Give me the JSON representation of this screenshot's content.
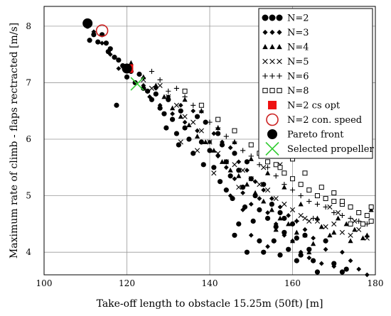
{
  "chart_data": {
    "type": "scatter",
    "xlabel": "Take-off  length to obstacle 15.25m (50ft)    [m]",
    "ylabel": "Maximum rate of climb - flaps rectracted     [m/s]",
    "xlim": [
      100,
      180
    ],
    "ylim": [
      3.6,
      8.35
    ],
    "xticks": [
      100,
      120,
      140,
      160,
      180
    ],
    "yticks": [
      4,
      5,
      6,
      7,
      8
    ],
    "grid": true,
    "legend_position": "top-right",
    "series": [
      {
        "name": "N=2",
        "marker": "circle",
        "color": "#000000",
        "points": [
          [
            110.5,
            8.0
          ],
          [
            111,
            7.75
          ],
          [
            112,
            7.85
          ],
          [
            113,
            7.72
          ],
          [
            114,
            7.85
          ],
          [
            115,
            7.7
          ],
          [
            115.5,
            7.55
          ],
          [
            116,
            7.6
          ],
          [
            117,
            7.45
          ],
          [
            118,
            7.4
          ],
          [
            117.5,
            6.6
          ],
          [
            119,
            7.3
          ],
          [
            120,
            7.1
          ],
          [
            121,
            7.2
          ],
          [
            122,
            7.0
          ],
          [
            123,
            7.15
          ],
          [
            124,
            6.9
          ],
          [
            125,
            6.85
          ],
          [
            126,
            6.7
          ],
          [
            127,
            6.8
          ],
          [
            128,
            6.55
          ],
          [
            129,
            6.45
          ],
          [
            129.5,
            6.2
          ],
          [
            130,
            6.7
          ],
          [
            131,
            6.35
          ],
          [
            132,
            6.1
          ],
          [
            132.5,
            5.9
          ],
          [
            133,
            6.5
          ],
          [
            134,
            6.2
          ],
          [
            135,
            6.0
          ],
          [
            136,
            5.75
          ],
          [
            137,
            6.4
          ],
          [
            138,
            5.95
          ],
          [
            138.5,
            5.55
          ],
          [
            139,
            6.3
          ],
          [
            140,
            5.8
          ],
          [
            141,
            5.5
          ],
          [
            142,
            6.1
          ],
          [
            142.5,
            5.25
          ],
          [
            143,
            5.9
          ],
          [
            144,
            5.6
          ],
          [
            145,
            5.35
          ],
          [
            145.5,
            4.95
          ],
          [
            146,
            5.75
          ],
          [
            147,
            5.45
          ],
          [
            148,
            5.15
          ],
          [
            148.5,
            4.8
          ],
          [
            149,
            5.6
          ],
          [
            150,
            5.3
          ],
          [
            150.5,
            4.55
          ],
          [
            151,
            5.0
          ],
          [
            152,
            4.75
          ],
          [
            153,
            5.2
          ],
          [
            154,
            4.6
          ],
          [
            155,
            4.85
          ],
          [
            155.5,
            4.2
          ],
          [
            156,
            4.45
          ],
          [
            157,
            4.7
          ],
          [
            158,
            4.35
          ],
          [
            159,
            4.05
          ],
          [
            160,
            4.5
          ],
          [
            161,
            4.25
          ],
          [
            162,
            3.95
          ],
          [
            163,
            4.3
          ],
          [
            164,
            4.05
          ],
          [
            165,
            3.85
          ],
          [
            166,
            3.65
          ],
          [
            168,
            4.2
          ],
          [
            170,
            3.8
          ],
          [
            172,
            3.65
          ],
          [
            173,
            3.7
          ],
          [
            146,
            4.3
          ],
          [
            147,
            4.5
          ],
          [
            149,
            4.0
          ],
          [
            144,
            5.1
          ],
          [
            152,
            4.2
          ],
          [
            158,
            4.6
          ],
          [
            161,
            3.85
          ],
          [
            157,
            3.95
          ],
          [
            153,
            4.0
          ]
        ]
      },
      {
        "name": "N=3",
        "marker": "diamond",
        "color": "#000000",
        "points": [
          [
            112,
            7.9
          ],
          [
            114,
            7.7
          ],
          [
            116,
            7.5
          ],
          [
            118,
            7.25
          ],
          [
            120,
            7.3
          ],
          [
            122,
            7.0
          ],
          [
            124,
            6.95
          ],
          [
            125.5,
            6.75
          ],
          [
            127,
            6.9
          ],
          [
            128,
            6.6
          ],
          [
            130,
            6.75
          ],
          [
            131,
            6.45
          ],
          [
            133,
            6.6
          ],
          [
            134,
            6.3
          ],
          [
            136,
            6.5
          ],
          [
            137,
            6.15
          ],
          [
            139,
            6.3
          ],
          [
            140,
            5.95
          ],
          [
            141,
            6.1
          ],
          [
            142,
            5.7
          ],
          [
            143,
            5.95
          ],
          [
            144,
            5.5
          ],
          [
            145,
            5.85
          ],
          [
            146,
            5.3
          ],
          [
            147,
            5.6
          ],
          [
            148,
            5.05
          ],
          [
            149,
            5.45
          ],
          [
            150,
            4.85
          ],
          [
            151,
            5.25
          ],
          [
            152,
            4.95
          ],
          [
            153,
            5.1
          ],
          [
            154,
            4.7
          ],
          [
            155,
            4.95
          ],
          [
            156,
            4.5
          ],
          [
            157,
            4.8
          ],
          [
            158,
            4.3
          ],
          [
            159,
            4.65
          ],
          [
            160,
            4.2
          ],
          [
            161,
            4.55
          ],
          [
            162,
            4.0
          ],
          [
            163,
            4.4
          ],
          [
            164,
            3.9
          ],
          [
            165,
            4.25
          ],
          [
            167,
            3.8
          ],
          [
            168,
            4.05
          ],
          [
            170,
            3.75
          ],
          [
            172,
            4.0
          ],
          [
            174,
            3.85
          ],
          [
            176,
            3.7
          ],
          [
            178,
            3.6
          ],
          [
            150,
            4.3
          ],
          [
            154,
            4.1
          ],
          [
            148,
            4.75
          ],
          [
            145,
            5.0
          ]
        ]
      },
      {
        "name": "N=4",
        "marker": "triangle",
        "color": "#000000",
        "points": [
          [
            121,
            7.35
          ],
          [
            124,
            7.1
          ],
          [
            127,
            6.95
          ],
          [
            129,
            6.75
          ],
          [
            131,
            6.55
          ],
          [
            133,
            6.4
          ],
          [
            135,
            6.25
          ],
          [
            137,
            6.05
          ],
          [
            139,
            5.95
          ],
          [
            141,
            5.8
          ],
          [
            143,
            5.6
          ],
          [
            145,
            5.45
          ],
          [
            147,
            5.35
          ],
          [
            149,
            5.2
          ],
          [
            151,
            5.05
          ],
          [
            153,
            4.9
          ],
          [
            155,
            4.75
          ],
          [
            157,
            4.6
          ],
          [
            159,
            4.5
          ],
          [
            161,
            4.35
          ],
          [
            163,
            4.3
          ],
          [
            165,
            4.15
          ],
          [
            167,
            4.45
          ],
          [
            169,
            4.3
          ],
          [
            171,
            4.6
          ],
          [
            173,
            4.5
          ],
          [
            175,
            4.4
          ],
          [
            177,
            4.25
          ],
          [
            178,
            4.3
          ],
          [
            179,
            4.75
          ],
          [
            134,
            6.7
          ],
          [
            138,
            6.5
          ],
          [
            142,
            6.2
          ],
          [
            146,
            5.95
          ],
          [
            150,
            5.65
          ],
          [
            154,
            5.4
          ],
          [
            158,
            5.15
          ],
          [
            162,
            4.85
          ],
          [
            166,
            4.6
          ],
          [
            170,
            4.35
          ],
          [
            174,
            4.2
          ],
          [
            160,
            4.2
          ],
          [
            164,
            4.0
          ],
          [
            156,
            4.4
          ]
        ]
      },
      {
        "name": "N=5",
        "marker": "x",
        "color": "#000000",
        "points": [
          [
            124,
            7.05
          ],
          [
            126,
            6.9
          ],
          [
            128,
            6.95
          ],
          [
            130,
            6.75
          ],
          [
            132,
            6.6
          ],
          [
            134,
            6.4
          ],
          [
            136,
            6.3
          ],
          [
            138,
            6.15
          ],
          [
            140,
            5.95
          ],
          [
            142,
            5.75
          ],
          [
            144,
            5.6
          ],
          [
            146,
            5.55
          ],
          [
            148,
            5.45
          ],
          [
            150,
            5.3
          ],
          [
            152,
            5.2
          ],
          [
            154,
            5.1
          ],
          [
            156,
            4.95
          ],
          [
            158,
            4.85
          ],
          [
            160,
            4.75
          ],
          [
            162,
            4.65
          ],
          [
            164,
            4.55
          ],
          [
            166,
            4.55
          ],
          [
            168,
            4.45
          ],
          [
            170,
            4.5
          ],
          [
            172,
            4.35
          ],
          [
            174,
            4.3
          ],
          [
            176,
            4.4
          ],
          [
            178,
            4.25
          ],
          [
            133,
            5.95
          ],
          [
            137,
            5.8
          ],
          [
            141,
            5.4
          ],
          [
            147,
            5.15
          ],
          [
            153,
            5.5
          ],
          [
            157,
            5.55
          ],
          [
            163,
            4.6
          ],
          [
            169,
            4.8
          ],
          [
            171,
            4.7
          ],
          [
            175,
            4.55
          ]
        ]
      },
      {
        "name": "N=6",
        "marker": "plus",
        "color": "#000000",
        "points": [
          [
            126,
            7.2
          ],
          [
            128,
            7.05
          ],
          [
            130,
            6.85
          ],
          [
            132,
            6.9
          ],
          [
            134,
            6.75
          ],
          [
            136,
            6.6
          ],
          [
            138,
            6.5
          ],
          [
            140,
            6.3
          ],
          [
            142,
            6.2
          ],
          [
            144,
            6.05
          ],
          [
            146,
            5.95
          ],
          [
            148,
            5.8
          ],
          [
            150,
            5.7
          ],
          [
            152,
            5.55
          ],
          [
            154,
            5.5
          ],
          [
            156,
            5.35
          ],
          [
            158,
            5.2
          ],
          [
            160,
            5.1
          ],
          [
            162,
            5.0
          ],
          [
            164,
            4.9
          ],
          [
            166,
            4.85
          ],
          [
            168,
            4.8
          ],
          [
            170,
            4.7
          ],
          [
            172,
            4.65
          ],
          [
            174,
            4.6
          ],
          [
            176,
            4.55
          ],
          [
            178,
            4.5
          ],
          [
            161,
            4.55
          ],
          [
            165,
            4.6
          ]
        ]
      },
      {
        "name": "N=8",
        "marker": "square",
        "color": "#000000",
        "points": [
          [
            134,
            6.85
          ],
          [
            138,
            6.6
          ],
          [
            142,
            6.35
          ],
          [
            146,
            6.15
          ],
          [
            150,
            5.9
          ],
          [
            152,
            5.75
          ],
          [
            154,
            5.6
          ],
          [
            156,
            5.55
          ],
          [
            158,
            5.4
          ],
          [
            160,
            5.3
          ],
          [
            162,
            5.2
          ],
          [
            164,
            5.1
          ],
          [
            166,
            5.0
          ],
          [
            168,
            4.95
          ],
          [
            170,
            4.9
          ],
          [
            172,
            4.85
          ],
          [
            174,
            4.8
          ],
          [
            176,
            4.7
          ],
          [
            178,
            4.65
          ],
          [
            179,
            4.8
          ],
          [
            160,
            5.65
          ],
          [
            163,
            5.4
          ],
          [
            167,
            5.15
          ],
          [
            170,
            5.05
          ],
          [
            172,
            4.9
          ],
          [
            174,
            4.5
          ],
          [
            177,
            4.5
          ],
          [
            179,
            4.55
          ],
          [
            157,
            5.5
          ],
          [
            155,
            5.8
          ]
        ]
      },
      {
        "name": "N=2 cs opt",
        "marker": "filled-square",
        "color": "#ee1111",
        "points": [
          [
            120.5,
            7.25
          ]
        ]
      },
      {
        "name": "N=2 con. speed",
        "marker": "open-circle",
        "color": "#cc2222",
        "points": [
          [
            114,
            7.92
          ]
        ]
      },
      {
        "name": "Pareto front",
        "marker": "large-circle",
        "color": "#000000",
        "points": [
          [
            110.5,
            8.05
          ],
          [
            120,
            7.25
          ]
        ]
      },
      {
        "name": "Selected propeller",
        "marker": "large-x",
        "color": "#33cc33",
        "points": [
          [
            122.5,
            6.98
          ]
        ]
      }
    ]
  }
}
